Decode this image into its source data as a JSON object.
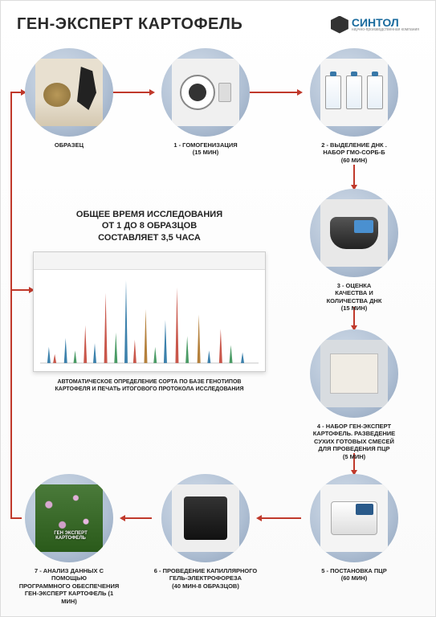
{
  "title": "ГЕН-ЭКСПЕРТ КАРТОФЕЛЬ",
  "logo": {
    "brand": "СИНТОЛ",
    "tagline": "научно-производственная компания"
  },
  "colors": {
    "arrow": "#c0392b",
    "circle_gradient": [
      "#d4deea",
      "#b0c0d4",
      "#8a9eb8"
    ],
    "brand_blue": "#1a6b9e",
    "text": "#222222",
    "background": "#ffffff"
  },
  "center": {
    "headline_l1": "ОБЩЕЕ ВРЕМЯ ИССЛЕДОВАНИЯ",
    "headline_l2": "ОТ 1 ДО 8 ОБРАЗЦОВ",
    "headline_l3": "СОСТАВЛЯЕТ 3,5 ЧАСА",
    "caption_l1": "АВТОМАТИЧЕСКОЕ ОПРЕДЕЛЕНИЕ СОРТА ПО БАЗЕ ГЕНОТИПОВ",
    "caption_l2": "КАРТОФЕЛЯ И ПЕЧАТЬ ИТОГОВОГО ПРОТОКОЛА ИССЛЕДОВАНИЯ",
    "chart": {
      "type": "electropherogram",
      "xlim": [
        0,
        300
      ],
      "ylim": [
        0,
        100
      ],
      "background": "#ffffff",
      "peaks": [
        {
          "x": 12,
          "h": 18,
          "color": "#1a6b9e"
        },
        {
          "x": 20,
          "h": 10,
          "color": "#c0392b"
        },
        {
          "x": 35,
          "h": 28,
          "color": "#1a6b9e"
        },
        {
          "x": 48,
          "h": 14,
          "color": "#2a8a4a"
        },
        {
          "x": 62,
          "h": 42,
          "color": "#c0392b"
        },
        {
          "x": 75,
          "h": 22,
          "color": "#1a6b9e"
        },
        {
          "x": 90,
          "h": 78,
          "color": "#c0392b"
        },
        {
          "x": 104,
          "h": 34,
          "color": "#2a8a4a"
        },
        {
          "x": 118,
          "h": 92,
          "color": "#1a6b9e"
        },
        {
          "x": 130,
          "h": 26,
          "color": "#c0392b"
        },
        {
          "x": 145,
          "h": 60,
          "color": "#a86b1a"
        },
        {
          "x": 158,
          "h": 18,
          "color": "#2a8a4a"
        },
        {
          "x": 172,
          "h": 48,
          "color": "#1a6b9e"
        },
        {
          "x": 188,
          "h": 84,
          "color": "#c0392b"
        },
        {
          "x": 202,
          "h": 30,
          "color": "#2a8a4a"
        },
        {
          "x": 218,
          "h": 54,
          "color": "#a86b1a"
        },
        {
          "x": 232,
          "h": 14,
          "color": "#1a6b9e"
        },
        {
          "x": 248,
          "h": 38,
          "color": "#c0392b"
        },
        {
          "x": 262,
          "h": 20,
          "color": "#2a8a4a"
        },
        {
          "x": 278,
          "h": 12,
          "color": "#1a6b9e"
        }
      ]
    }
  },
  "steps": [
    {
      "id": 0,
      "label": "ОБРАЗЕЦ",
      "visual": "potato"
    },
    {
      "id": 1,
      "label": "1 - ГОМОГЕНИЗАЦИЯ\n(15 МИН)",
      "visual": "homog"
    },
    {
      "id": 2,
      "label": "2 - ВЫДЕЛЕНИЕ ДНК .\nНАБОР ГМО-СОРБ-Б\n(60 МИН)",
      "visual": "bottles"
    },
    {
      "id": 3,
      "label": "3 - ОЦЕНКА\nКАЧЕСТВА И\nКОЛИЧЕСТВА ДНК\n(15 МИН)",
      "visual": "spectro"
    },
    {
      "id": 4,
      "label": "4 - НАБОР ГЕН-ЭКСПЕРТ\nКАРТОФЕЛЬ. РАЗВЕДЕНИЕ\nСУХИХ ГОТОВЫХ СМЕСЕЙ\nДЛЯ ПРОВЕДЕНИЯ ПЦР\n(5 МИН)",
      "visual": "kit"
    },
    {
      "id": 5,
      "label": "5 - ПОСТАНОВКА ПЦР\n(60 МИН)",
      "visual": "pcr"
    },
    {
      "id": 6,
      "label": "6 - ПРОВЕДЕНИЕ КАПИЛЛЯРНОГО\nГЕЛЬ-ЭЛЕКТРОФОРЕЗА\n(40 МИН-8 ОБРАЗЦОВ)",
      "visual": "gel"
    },
    {
      "id": 7,
      "label": "7 - АНАЛИЗ ДАННЫХ С ПОМОЩЬЮ\nПРОГРАММНОГО ОБЕСПЕЧЕНИЯ\nГЕН-ЭКСПЕРТ КАРТОФЕЛЬ (1 МИН)",
      "visual": "plant",
      "overlay": "ГЕН ЭКСПЕРТ КАРТОФЕЛЬ"
    }
  ],
  "flow": {
    "type": "flowchart",
    "arrow_color": "#c0392b",
    "arrow_width": 2,
    "edges": [
      {
        "from": 0,
        "to": 1,
        "dir": "right"
      },
      {
        "from": 1,
        "to": 2,
        "dir": "right"
      },
      {
        "from": 2,
        "to": 3,
        "dir": "down"
      },
      {
        "from": 3,
        "to": 4,
        "dir": "down"
      },
      {
        "from": 4,
        "to": 5,
        "dir": "down"
      },
      {
        "from": 5,
        "to": 6,
        "dir": "left"
      },
      {
        "from": 6,
        "to": 7,
        "dir": "left"
      },
      {
        "from": 7,
        "to": "center",
        "dir": "up-right-branch"
      }
    ]
  }
}
